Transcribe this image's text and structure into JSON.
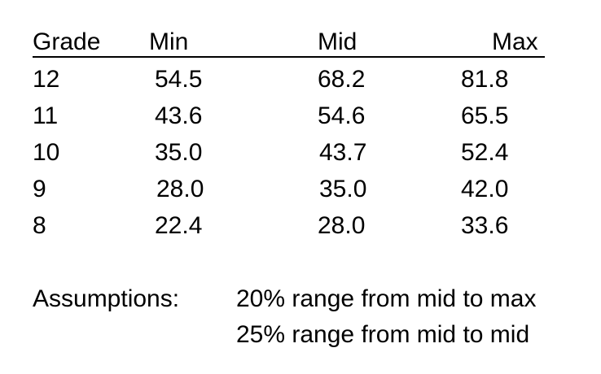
{
  "table": {
    "headers": [
      "Grade",
      "Min",
      "Mid",
      "Max"
    ],
    "rows": [
      [
        "12",
        "54.5",
        "68.2",
        "81.8"
      ],
      [
        "11",
        "43.6",
        "54.6",
        "65.5"
      ],
      [
        "10",
        "35.0",
        "43.7",
        "52.4"
      ],
      [
        "9",
        "28.0",
        "35.0",
        "42.0"
      ],
      [
        "8",
        "22.4",
        "28.0",
        "33.6"
      ]
    ]
  },
  "assumptions": {
    "label": "Assumptions:",
    "lines": [
      "20% range from mid to max",
      "25% range from mid to mid"
    ]
  }
}
